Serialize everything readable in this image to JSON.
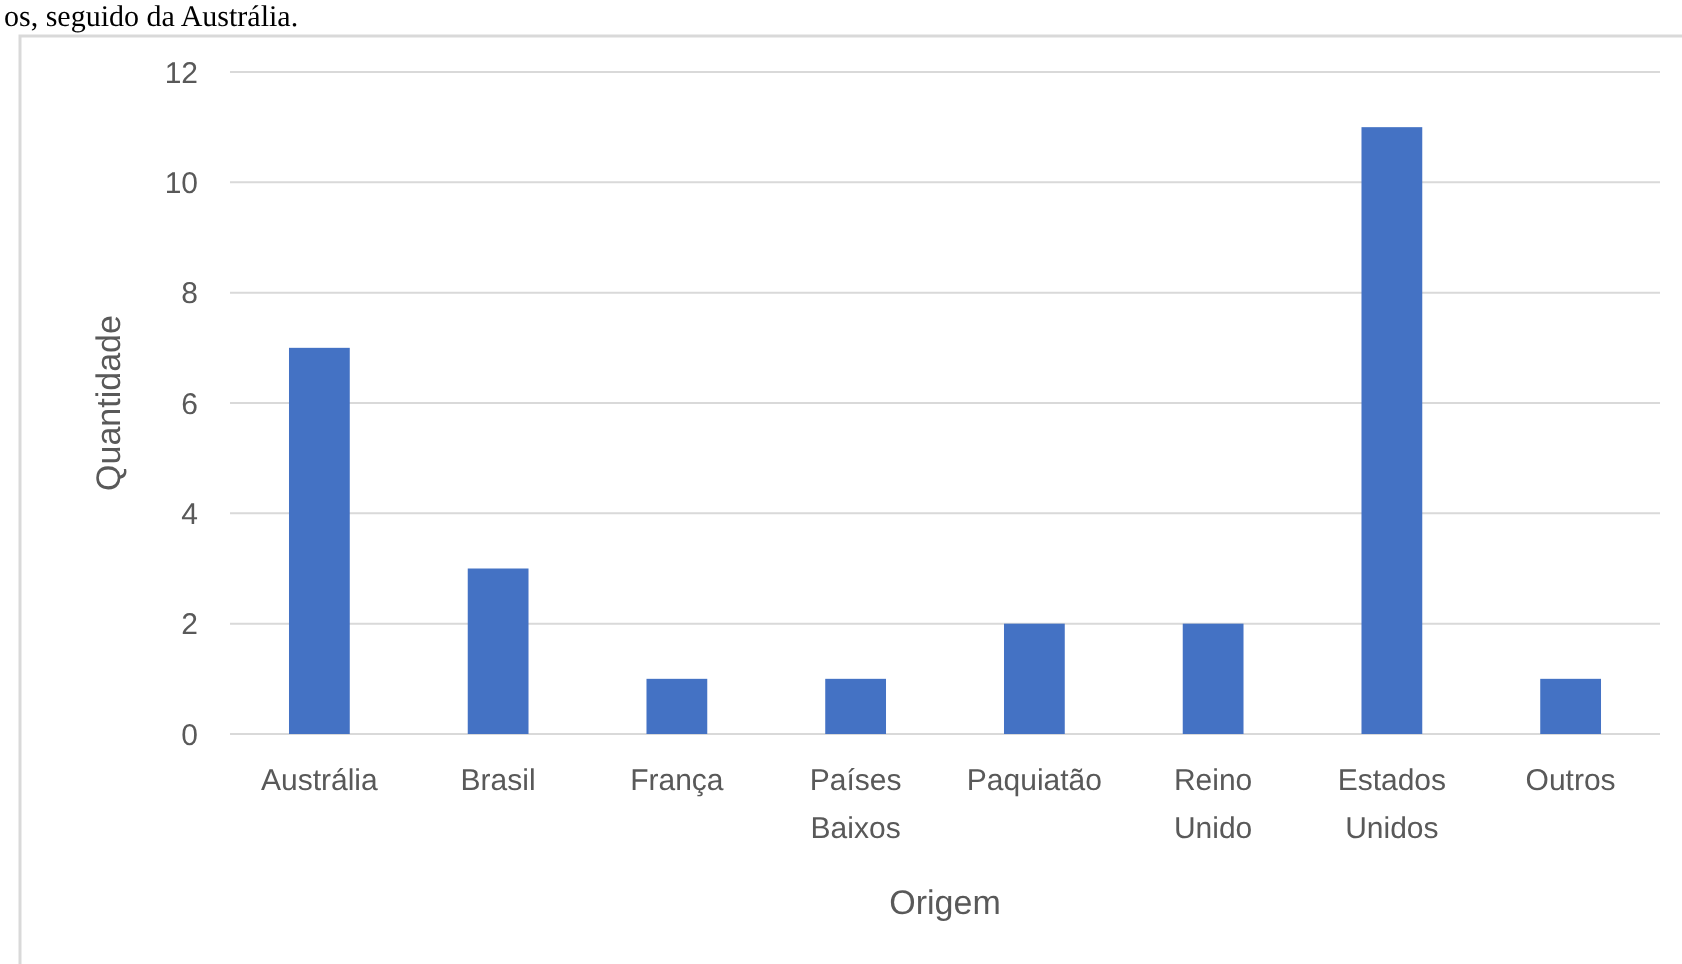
{
  "chart_data": {
    "type": "bar",
    "xlabel": "Origem",
    "ylabel": "Quantidade",
    "categories": [
      "Austrália",
      "Brasil",
      "França",
      "Países Baixos",
      "Paquiatão",
      "Reino Unido",
      "Estados Unidos",
      "Outros"
    ],
    "values": [
      7,
      3,
      1,
      1,
      2,
      2,
      11,
      1
    ],
    "color": "#4472c4",
    "ylim": [
      0,
      12
    ],
    "yticks": [
      0,
      2,
      4,
      6,
      8,
      10,
      12
    ],
    "grid": "y",
    "annotations": [
      "os, seguido da Austrália."
    ]
  }
}
